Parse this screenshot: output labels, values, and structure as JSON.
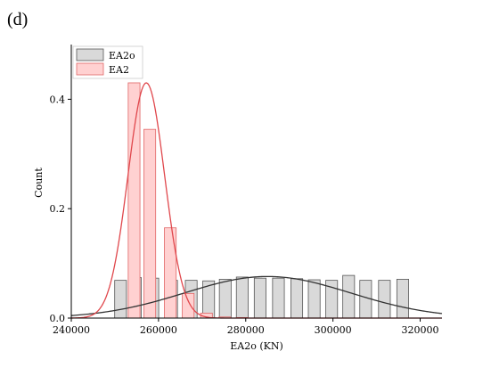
{
  "panel_label": "(d)",
  "chart_data": {
    "type": "bar",
    "xlabel": "EA2o (KN)",
    "ylabel": "Count",
    "xlim": [
      240000,
      325000
    ],
    "ylim": [
      0,
      0.5
    ],
    "x_ticks": [
      {
        "value": 240000,
        "label": "240000"
      },
      {
        "value": 260000,
        "label": "260000"
      },
      {
        "value": 280000,
        "label": "280000"
      },
      {
        "value": 300000,
        "label": "300000"
      },
      {
        "value": 320000,
        "label": "320000"
      }
    ],
    "y_ticks": [
      {
        "value": 0,
        "label": "0.0"
      },
      {
        "value": 0.2,
        "label": "0.2"
      },
      {
        "value": 0.4,
        "label": "0.4"
      }
    ],
    "legend_position": "top-left",
    "series": [
      {
        "name": "EA2o",
        "fill": "#d9d9d9",
        "stroke": "#555555",
        "curve_color": "#333333",
        "bin_width": 2700,
        "bins": [
          {
            "x": 251300,
            "y": 0.069
          },
          {
            "x": 254700,
            "y": 0.074
          },
          {
            "x": 258700,
            "y": 0.073
          },
          {
            "x": 263000,
            "y": 0.069
          },
          {
            "x": 267500,
            "y": 0.069
          },
          {
            "x": 271500,
            "y": 0.068
          },
          {
            "x": 275300,
            "y": 0.071
          },
          {
            "x": 279200,
            "y": 0.075
          },
          {
            "x": 283300,
            "y": 0.073
          },
          {
            "x": 287500,
            "y": 0.073
          },
          {
            "x": 291700,
            "y": 0.072
          },
          {
            "x": 295700,
            "y": 0.07
          },
          {
            "x": 299700,
            "y": 0.069
          },
          {
            "x": 303600,
            "y": 0.078
          },
          {
            "x": 307500,
            "y": 0.069
          },
          {
            "x": 311800,
            "y": 0.069
          },
          {
            "x": 316000,
            "y": 0.071
          }
        ],
        "curve": {
          "mean": 285000,
          "sd": 19000,
          "peak": 0.076
        }
      },
      {
        "name": "EA2",
        "fill": "#ffd1d1",
        "stroke": "#e06666",
        "curve_color": "#e0474c",
        "bin_width": 2700,
        "bins": [
          {
            "x": 254400,
            "y": 0.43
          },
          {
            "x": 258000,
            "y": 0.345
          },
          {
            "x": 262700,
            "y": 0.165
          },
          {
            "x": 266800,
            "y": 0.045
          },
          {
            "x": 271000,
            "y": 0.009
          },
          {
            "x": 275200,
            "y": 0.002
          },
          {
            "x": 279200,
            "y": 0.001
          }
        ],
        "curve": {
          "mean": 257200,
          "sd": 4200,
          "peak": 0.43
        }
      }
    ]
  }
}
